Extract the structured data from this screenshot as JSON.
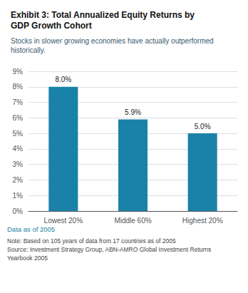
{
  "chart_data": {
    "type": "bar",
    "title": "Exhibit 3: Total Annualized Equity Returns by\nGDP Growth Cohort",
    "subtitle": "Stocks in slower growing economies have actually outperformed\nhistorically.",
    "categories": [
      "Lowest 20%",
      "Middle 60%",
      "Highest 20%"
    ],
    "values": [
      8.0,
      5.9,
      5.0
    ],
    "value_labels": [
      "8.0%",
      "5.9%",
      "5.0%"
    ],
    "color": "#1a82a8",
    "ylim": [
      0,
      9
    ],
    "yticks": [
      {
        "value": 0,
        "label": "0%"
      },
      {
        "value": 1,
        "label": "1%"
      },
      {
        "value": 2,
        "label": "2%"
      },
      {
        "value": 3,
        "label": "3%"
      },
      {
        "value": 4,
        "label": "4%"
      },
      {
        "value": 5,
        "label": "5%"
      },
      {
        "value": 6,
        "label": "6%"
      },
      {
        "value": 7,
        "label": "7%"
      },
      {
        "value": 8,
        "label": "8%"
      },
      {
        "value": 9,
        "label": "9%"
      }
    ],
    "grid": true,
    "data_labels": true,
    "annotations": [
      "Data as of 2005",
      "Note: Based on 105 years of data from 17 countries as of 2005\nSource: Investment Strategy Group, ABN-AMRO Global Investment Returns\nYearbook 2005"
    ]
  }
}
